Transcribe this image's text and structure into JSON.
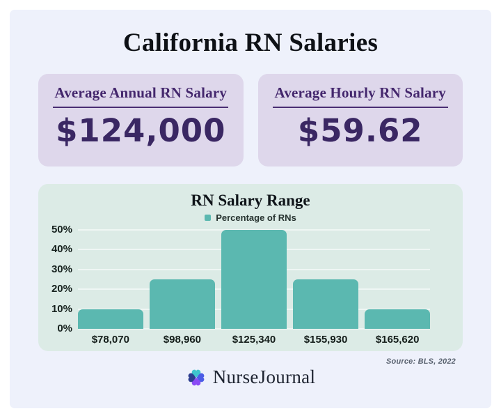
{
  "header": {
    "title": "California RN Salaries"
  },
  "stat_cards": [
    {
      "label": "Average Annual RN Salary",
      "value": "$124,000"
    },
    {
      "label": "Average Hourly RN Salary",
      "value": "$59.62"
    }
  ],
  "chart_data": {
    "type": "bar",
    "title": "RN Salary Range",
    "legend": "Percentage of RNs",
    "legend_position": "top",
    "categories": [
      "$78,070",
      "$98,960",
      "$125,340",
      "$155,930",
      "$165,620"
    ],
    "values": [
      10,
      25,
      50,
      25,
      10
    ],
    "unit": "%",
    "ylim": [
      0,
      50
    ],
    "yticks": [
      "0%",
      "10%",
      "20%",
      "30%",
      "40%",
      "50%"
    ],
    "grid": true,
    "bar_color": "#5bb8b0"
  },
  "footer": {
    "source": "Source: BLS, 2022",
    "brand_name": "NurseJournal"
  },
  "colors": {
    "page_background": "#eef1fb",
    "stat_card_background": "#ded7eb",
    "stat_text_purple": "#44276d",
    "chart_card_background": "#dcebe6",
    "bar_teal": "#5bb8b0",
    "title_dark": "#0e1116"
  }
}
